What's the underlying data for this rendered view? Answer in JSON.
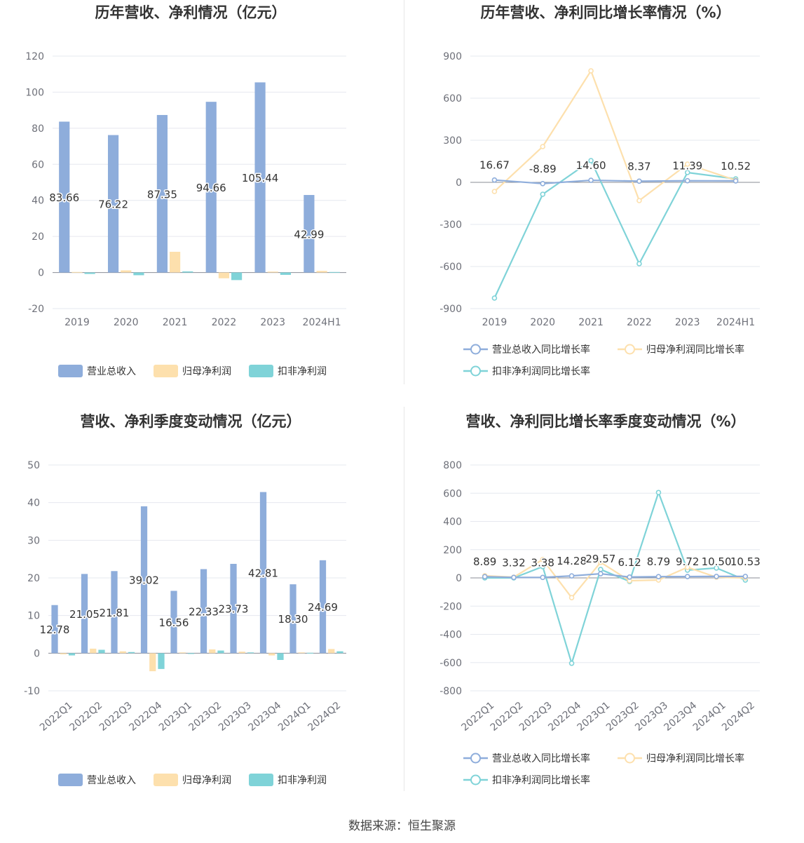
{
  "colors": {
    "revenue": "#8eaddb",
    "net_profit": "#fde0ad",
    "deducted_profit": "#7fd3d8",
    "grid": "#e6e8ef",
    "axis": "#6e7079"
  },
  "legend": {
    "bar_labels": [
      "营业总收入",
      "归母净利润",
      "扣非净利润"
    ],
    "line_labels": [
      "营业总收入同比增长率",
      "归母净利润同比增长率",
      "扣非净利润同比增长率"
    ]
  },
  "footer": {
    "source": "数据来源：恒生聚源"
  },
  "chart_data": [
    {
      "id": "annual_amounts",
      "type": "bar",
      "title": "历年营收、净利情况（亿元）",
      "categories": [
        "2019",
        "2020",
        "2021",
        "2022",
        "2023",
        "2024H1"
      ],
      "ylim": [
        -20,
        120
      ],
      "yticks": [
        -20,
        0,
        20,
        40,
        60,
        80,
        100,
        120
      ],
      "grid": true,
      "legend_position": "bottom",
      "series": [
        {
          "name": "营业总收入",
          "values": [
            83.66,
            76.22,
            87.35,
            94.66,
            105.44,
            42.99
          ],
          "labels": [
            "83.66",
            "76.22",
            "87.35",
            "94.66",
            "105.44",
            "42.99"
          ]
        },
        {
          "name": "归母净利润",
          "values": [
            0.3,
            1.2,
            11.5,
            -3.2,
            0.5,
            0.9
          ]
        },
        {
          "name": "扣非净利润",
          "values": [
            -0.8,
            -1.5,
            0.6,
            -4.2,
            -1.3,
            0.3
          ]
        }
      ]
    },
    {
      "id": "annual_growth",
      "type": "line",
      "title": "历年营收、净利同比增长率情况（%）",
      "categories": [
        "2019",
        "2020",
        "2021",
        "2022",
        "2023",
        "2024H1"
      ],
      "ylim": [
        -900,
        900
      ],
      "yticks": [
        -900,
        -600,
        -300,
        0,
        300,
        600,
        900
      ],
      "grid": true,
      "legend_position": "bottom",
      "series": [
        {
          "name": "营业总收入同比增长率",
          "values": [
            16.67,
            -8.89,
            14.6,
            8.37,
            11.39,
            10.52
          ],
          "labels": [
            "16.67",
            "-8.89",
            "14.60",
            "8.37",
            "11.39",
            "10.52"
          ]
        },
        {
          "name": "归母净利润同比增长率",
          "values": [
            -65,
            255,
            795,
            -130,
            130,
            15
          ]
        },
        {
          "name": "扣非净利润同比增长率",
          "values": [
            -825,
            -85,
            155,
            -580,
            70,
            25
          ]
        }
      ]
    },
    {
      "id": "quarterly_amounts",
      "type": "bar",
      "title": "营收、净利季度变动情况（亿元）",
      "categories": [
        "2022Q1",
        "2022Q2",
        "2022Q3",
        "2022Q4",
        "2023Q1",
        "2023Q2",
        "2023Q3",
        "2023Q4",
        "2024Q1",
        "2024Q2"
      ],
      "ylim": [
        -10,
        50
      ],
      "yticks": [
        -10,
        0,
        10,
        20,
        30,
        40,
        50
      ],
      "grid": true,
      "legend_position": "bottom",
      "series": [
        {
          "name": "营业总收入",
          "values": [
            12.78,
            21.05,
            21.81,
            39.02,
            16.56,
            22.33,
            23.73,
            42.81,
            18.3,
            24.69
          ],
          "labels": [
            "12.78",
            "21.05",
            "21.81",
            "39.02",
            "16.56",
            "22.33",
            "23.73",
            "42.81",
            "18.30",
            "24.69"
          ]
        },
        {
          "name": "归母净利润",
          "values": [
            -0.3,
            1.2,
            0.5,
            -4.8,
            0.2,
            1.0,
            0.4,
            -0.6,
            0.2,
            1.1
          ]
        },
        {
          "name": "扣非净利润",
          "values": [
            -0.6,
            0.9,
            0.3,
            -4.2,
            -0.2,
            0.7,
            0.2,
            -1.8,
            0.1,
            0.5
          ]
        }
      ]
    },
    {
      "id": "quarterly_growth",
      "type": "line",
      "title": "营收、净利同比增长率季度变动情况（%）",
      "categories": [
        "2022Q1",
        "2022Q2",
        "2022Q3",
        "2022Q4",
        "2023Q1",
        "2023Q2",
        "2023Q3",
        "2023Q4",
        "2024Q1",
        "2024Q2"
      ],
      "ylim": [
        -800,
        800
      ],
      "yticks": [
        -800,
        -600,
        -400,
        -200,
        0,
        200,
        400,
        600,
        800
      ],
      "grid": true,
      "legend_position": "bottom",
      "series": [
        {
          "name": "营业总收入同比增长率",
          "values": [
            8.89,
            3.32,
            3.38,
            14.28,
            29.57,
            6.12,
            8.79,
            9.72,
            10.5,
            10.53
          ],
          "labels": [
            "8.89",
            "3.32",
            "3.38",
            "14.28",
            "29.57",
            "6.12",
            "8.79",
            "9.72",
            "10.50",
            "10.53"
          ]
        },
        {
          "name": "归母净利润同比增长率",
          "values": [
            15,
            5,
            130,
            -140,
            110,
            -20,
            -15,
            75,
            5,
            0
          ]
        },
        {
          "name": "扣非净利润同比增长率",
          "values": [
            0,
            0,
            80,
            -605,
            60,
            -25,
            605,
            55,
            70,
            -15
          ]
        }
      ]
    }
  ]
}
